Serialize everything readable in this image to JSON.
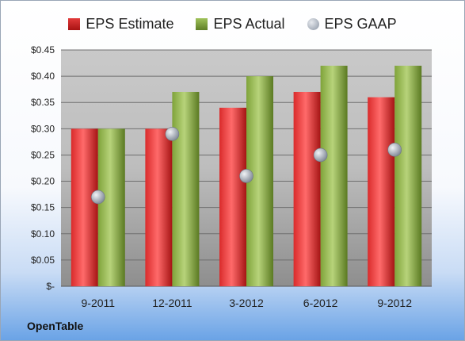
{
  "chart_data": {
    "type": "bar",
    "categories": [
      "9-2011",
      "12-2011",
      "3-2012",
      "6-2012",
      "9-2012"
    ],
    "series": [
      {
        "name": "EPS Estimate",
        "kind": "bar",
        "values": [
          0.3,
          0.3,
          0.34,
          0.37,
          0.36
        ],
        "color": "#c81e1e"
      },
      {
        "name": "EPS Actual",
        "kind": "bar",
        "values": [
          0.3,
          0.37,
          0.4,
          0.42,
          0.42
        ],
        "color": "#7fa33a"
      },
      {
        "name": "EPS GAAP",
        "kind": "marker",
        "values": [
          0.17,
          0.29,
          0.21,
          0.25,
          0.26
        ],
        "color": "#9aa3b0"
      }
    ],
    "ylim": [
      0,
      0.45
    ],
    "yticks": [
      0,
      0.05,
      0.1,
      0.15,
      0.2,
      0.25,
      0.3,
      0.35,
      0.4,
      0.45
    ],
    "ytick_labels": [
      "$-",
      "$0.05",
      "$0.10",
      "$0.15",
      "$0.20",
      "$0.25",
      "$0.30",
      "$0.35",
      "$0.40",
      "$0.45"
    ],
    "grid": true,
    "legend_position": "top"
  },
  "company_name": "OpenTable"
}
